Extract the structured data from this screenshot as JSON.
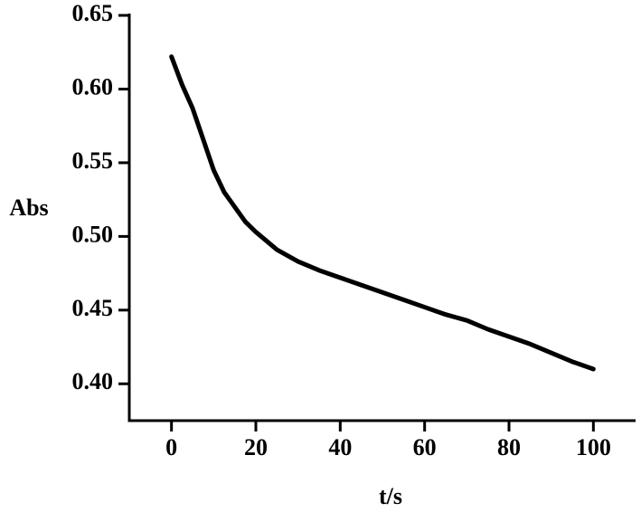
{
  "chart_data": {
    "type": "line",
    "xlabel": "t/s",
    "ylabel": "Abs",
    "x": [
      0,
      2.5,
      5,
      7.5,
      10,
      12.5,
      15,
      17.5,
      20,
      25,
      30,
      35,
      40,
      45,
      50,
      55,
      60,
      65,
      70,
      75,
      80,
      85,
      90,
      95,
      100
    ],
    "series": [
      {
        "name": "Abs",
        "color": "#000000",
        "values": [
          0.622,
          0.603,
          0.587,
          0.566,
          0.545,
          0.53,
          0.52,
          0.51,
          0.503,
          0.491,
          0.483,
          0.477,
          0.472,
          0.467,
          0.462,
          0.457,
          0.452,
          0.447,
          0.443,
          0.437,
          0.432,
          0.427,
          0.421,
          0.415,
          0.41
        ]
      }
    ],
    "xlim": [
      -10,
      110
    ],
    "xticks": [
      0,
      20,
      40,
      60,
      80,
      100
    ],
    "ylim": [
      0.375,
      0.65
    ],
    "yticks": [
      {
        "value": 0.4,
        "label": "0.40"
      },
      0.45,
      {
        "value": 0.5,
        "label": "0.50"
      },
      0.55,
      {
        "value": 0.6,
        "label": "0.60"
      },
      0.65
    ],
    "grid": false
  }
}
